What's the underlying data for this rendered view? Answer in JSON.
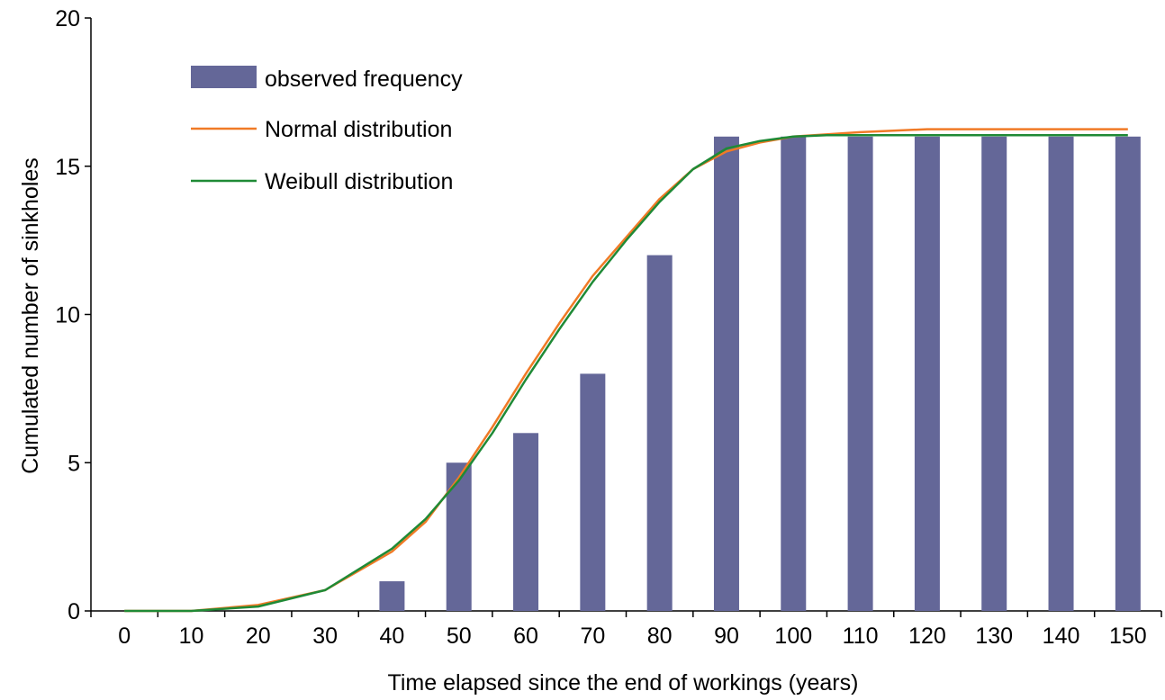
{
  "chart_data": {
    "type": "bar",
    "xlabel": "Time elapsed since the end of workings (years)",
    "ylabel": "Cumulated number of sinkholes",
    "ylim": [
      0,
      20
    ],
    "y_ticks": [
      "0",
      "5",
      "10",
      "15",
      "20"
    ],
    "categories": [
      "0",
      "10",
      "20",
      "30",
      "40",
      "50",
      "60",
      "70",
      "80",
      "90",
      "100",
      "110",
      "120",
      "130",
      "140",
      "150"
    ],
    "grid": false,
    "legend_position": "top-left",
    "series": [
      {
        "name": "observed frequency",
        "kind": "bar",
        "color": "#646798",
        "values": [
          0,
          0,
          0,
          0,
          1,
          5,
          6,
          8,
          12,
          16,
          16,
          16,
          16,
          16,
          16,
          16
        ]
      },
      {
        "name": "Normal distribution",
        "kind": "line",
        "color": "#f07a26",
        "x": [
          0,
          10,
          20,
          30,
          40,
          45,
          50,
          55,
          60,
          65,
          70,
          75,
          80,
          85,
          90,
          95,
          100,
          110,
          120,
          130,
          140,
          150
        ],
        "values": [
          0,
          0,
          0.2,
          0.7,
          2.0,
          3.0,
          4.5,
          6.2,
          8.0,
          9.7,
          11.3,
          12.6,
          13.9,
          14.9,
          15.5,
          15.8,
          16.0,
          16.15,
          16.25,
          16.25,
          16.25,
          16.25
        ]
      },
      {
        "name": "Weibull distribution",
        "kind": "line",
        "color": "#1f8a36",
        "x": [
          0,
          10,
          20,
          30,
          40,
          45,
          50,
          55,
          60,
          65,
          70,
          75,
          80,
          85,
          90,
          95,
          100,
          105,
          110,
          120,
          130,
          140,
          150
        ],
        "values": [
          0,
          0,
          0.15,
          0.7,
          2.1,
          3.1,
          4.4,
          6.0,
          7.8,
          9.5,
          11.1,
          12.5,
          13.8,
          14.9,
          15.6,
          15.85,
          16.0,
          16.05,
          16.05,
          16.05,
          16.05,
          16.05,
          16.05
        ]
      }
    ]
  }
}
